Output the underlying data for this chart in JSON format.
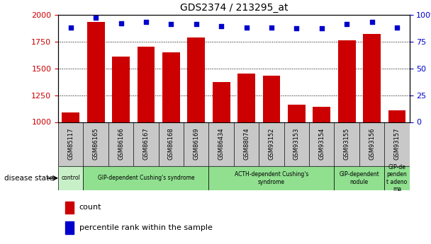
{
  "title": "GDS2374 / 213295_at",
  "samples": [
    "GSM85117",
    "GSM86165",
    "GSM86166",
    "GSM86167",
    "GSM86168",
    "GSM86169",
    "GSM86434",
    "GSM88074",
    "GSM93152",
    "GSM93153",
    "GSM93154",
    "GSM93155",
    "GSM93156",
    "GSM93157"
  ],
  "counts": [
    1090,
    1930,
    1610,
    1700,
    1650,
    1790,
    1370,
    1450,
    1430,
    1160,
    1140,
    1760,
    1820,
    1110
  ],
  "percentile_ranks": [
    88,
    97,
    92,
    93,
    91,
    91,
    89,
    88,
    88,
    87,
    87,
    91,
    93,
    88
  ],
  "bar_color": "#cc0000",
  "dot_color": "#0000cc",
  "ylim_left": [
    1000,
    2000
  ],
  "ylim_right": [
    0,
    100
  ],
  "yticks_left": [
    1000,
    1250,
    1500,
    1750,
    2000
  ],
  "yticks_right": [
    0,
    25,
    50,
    75,
    100
  ],
  "tick_bg_color": "#c8c8c8",
  "background_color": "#ffffff",
  "grid_color": "#000000",
  "group_defs": [
    {
      "label": "control",
      "start": 0,
      "end": 0,
      "color": "#c8f0c8"
    },
    {
      "label": "GIP-dependent Cushing's syndrome",
      "start": 1,
      "end": 5,
      "color": "#90e090"
    },
    {
      "label": "ACTH-dependent Cushing's\nsyndrome",
      "start": 6,
      "end": 10,
      "color": "#90e090"
    },
    {
      "label": "GIP-dependent\nnodule",
      "start": 11,
      "end": 12,
      "color": "#90e090"
    },
    {
      "label": "GIP-de\npenden\nt adeno\nma",
      "start": 13,
      "end": 13,
      "color": "#90e090"
    }
  ],
  "disease_state_label": "disease state",
  "legend_count_label": "count",
  "legend_percentile_label": "percentile rank within the sample",
  "figsize": [
    6.08,
    3.45
  ],
  "dpi": 100
}
